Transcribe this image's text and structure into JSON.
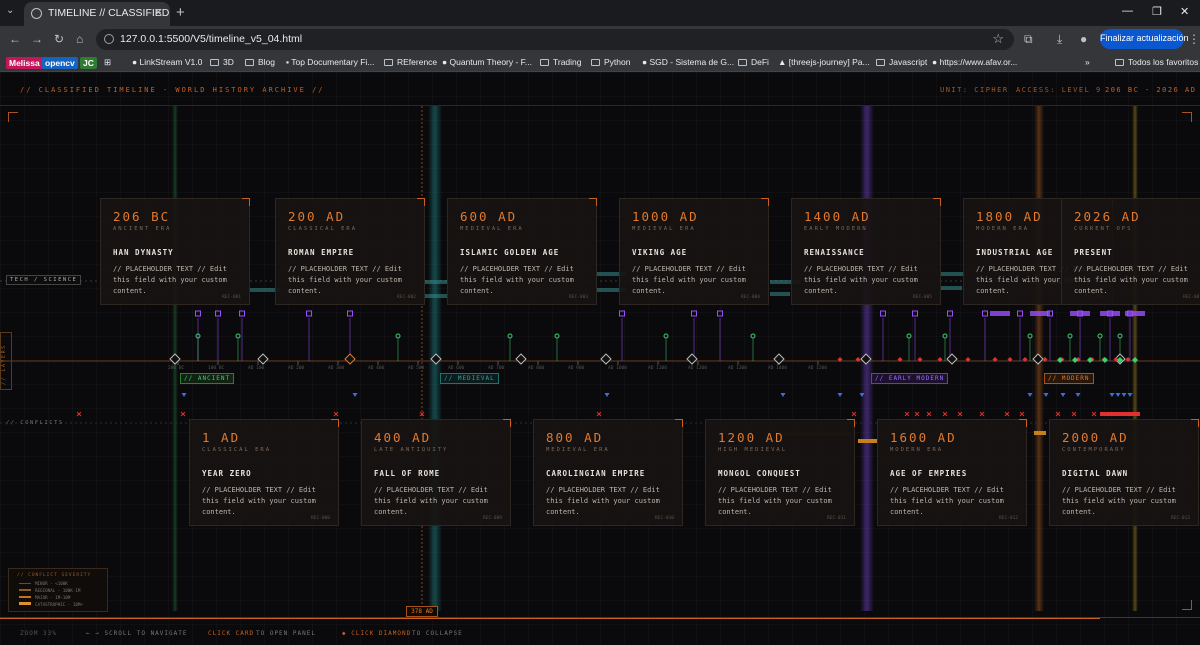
{
  "browser": {
    "tab_title": "TIMELINE // CLASSIFIED",
    "url": "127.0.0.1:5500/V5/timeline_v5_04.html",
    "update_button": "Finalizar actualización",
    "bookmarks": [
      "Melissa",
      "opencv",
      "JC",
      "LinkStream V1.0",
      "3D",
      "Blog",
      "Top Documentary Fi...",
      "REference",
      "Quantum Theory - F...",
      "Trading",
      "Python",
      "SGD - Sistema de G...",
      "DeFi",
      "[threejs-journey] Pa...",
      "Javascript",
      "https://www.afav.or...",
      "Todos los favoritos"
    ]
  },
  "header": {
    "title": "// CLASSIFIED TIMELINE - WORLD HISTORY ARCHIVE //",
    "unit": "UNIT: CIPHER",
    "access": "ACCESS: LEVEL 9",
    "range": "206 BC - 2026 AD"
  },
  "side_labels": {
    "tech": "TECH / SCIENCE",
    "layers": "// LAYERS",
    "conflicts": "// CONFLICTS"
  },
  "era_labels": [
    "// ANCIENT",
    "// MEDIEVAL",
    "// EARLY MODERN",
    "// MODERN"
  ],
  "axis_ticks": [
    "200 BC",
    "100 BC",
    "AD 100",
    "AD 200",
    "AD 300",
    "AD 400",
    "AD 500",
    "AD 600",
    "AD 700",
    "AD 800",
    "AD 900",
    "AD 1000",
    "AD 1100",
    "AD 1200",
    "AD 1300",
    "AD 1400",
    "AD 1500"
  ],
  "top_cards": [
    {
      "date": "206 BC",
      "era": "ANCIENT ERA",
      "name": "HAN DYNASTY",
      "body": "// PLACEHOLDER TEXT // Edit this field with your custom content.",
      "id": "REC-001"
    },
    {
      "date": "200 AD",
      "era": "CLASSICAL ERA",
      "name": "ROMAN EMPIRE",
      "body": "// PLACEHOLDER TEXT // Edit this field with your custom content.",
      "id": "REC-002"
    },
    {
      "date": "600 AD",
      "era": "MEDIEVAL ERA",
      "name": "ISLAMIC GOLDEN AGE",
      "body": "// PLACEHOLDER TEXT // Edit this field with your custom content.",
      "id": "REC-003"
    },
    {
      "date": "1000 AD",
      "era": "MEDIEVAL ERA",
      "name": "VIKING AGE",
      "body": "// PLACEHOLDER TEXT // Edit this field with your custom content.",
      "id": "REC-004"
    },
    {
      "date": "1400 AD",
      "era": "EARLY MODERN",
      "name": "RENAISSANCE",
      "body": "// PLACEHOLDER TEXT // Edit this field with your custom content.",
      "id": "REC-005"
    },
    {
      "date": "1800 AD",
      "era": "MODERN ERA",
      "name": "INDUSTRIAL AGE",
      "body": "// PLACEHOLDER TEXT // Edit this field with your custom content.",
      "id": "REC-006"
    },
    {
      "date": "2026 AD",
      "era": "CURRENT OPS",
      "name": "PRESENT",
      "body": "// PLACEHOLDER TEXT // Edit this field with your custom content.",
      "id": "REC-007"
    }
  ],
  "bottom_cards": [
    {
      "date": "1 AD",
      "era": "CLASSICAL ERA",
      "name": "YEAR ZERO",
      "body": "// PLACEHOLDER TEXT // Edit this field with your custom content.",
      "id": "REC-008"
    },
    {
      "date": "400 AD",
      "era": "LATE ANTIQUITY",
      "name": "FALL OF ROME",
      "body": "// PLACEHOLDER TEXT // Edit this field with your custom content.",
      "id": "REC-009"
    },
    {
      "date": "800 AD",
      "era": "MEDIEVAL ERA",
      "name": "CAROLINGIAN EMPIRE",
      "body": "// PLACEHOLDER TEXT // Edit this field with your custom content.",
      "id": "REC-010"
    },
    {
      "date": "1200 AD",
      "era": "HIGH MEDIEVAL",
      "name": "MONGOL CONQUEST",
      "body": "// PLACEHOLDER TEXT // Edit this field with your custom content.",
      "id": "REC-011"
    },
    {
      "date": "1600 AD",
      "era": "MODERN ERA",
      "name": "AGE OF EMPIRES",
      "body": "// PLACEHOLDER TEXT // Edit this field with your custom content.",
      "id": "REC-012"
    },
    {
      "date": "2000 AD",
      "era": "CONTEMPORARY",
      "name": "DIGITAL DAWN",
      "body": "// PLACEHOLDER TEXT // Edit this field with your custom content.",
      "id": "REC-013"
    }
  ],
  "legend": {
    "title": "// CONFLICT SEVERITY",
    "rows": [
      "MINOR - <100K",
      "REGIONAL - 100K-1M",
      "MAJOR - 1M-10M",
      "CATASTROPHIC - 10M+"
    ]
  },
  "current_year": "378 AD",
  "footer": {
    "zoom": "ZOOM 33%",
    "scroll": "← → SCROLL TO NAVIGATE",
    "click_card": "CLICK CARD",
    "open_panel": "TO OPEN PANEL",
    "click_diamond": "◆ CLICK DIAMOND",
    "collapse": "TO COLLAPSE"
  },
  "colors": {
    "accent": "#e07a2e",
    "purple": "#9b4dff",
    "green": "#3bd16f",
    "blue": "#3a6fe0",
    "red": "#e03030",
    "teal": "#2aa6a6"
  }
}
